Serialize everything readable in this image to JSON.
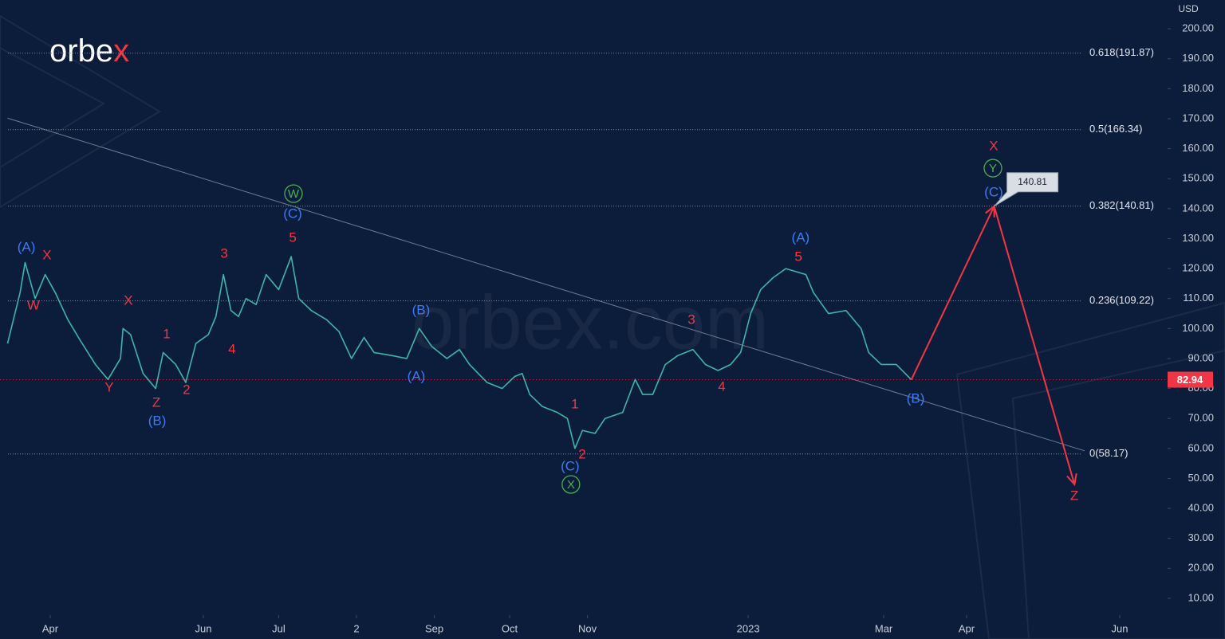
{
  "chart_data": {
    "type": "line",
    "logo": [
      "orbe",
      "x"
    ],
    "watermark": "orbex.com",
    "y_unit": "USD",
    "xlim": [
      0,
      465
    ],
    "xticks": [
      {
        "value": 20,
        "label": "Apr"
      },
      {
        "value": 81,
        "label": "Jun"
      },
      {
        "value": 111,
        "label": "Jul"
      },
      {
        "value": 142,
        "label": "2"
      },
      {
        "value": 173,
        "label": "Sep"
      },
      {
        "value": 203,
        "label": "Oct"
      },
      {
        "value": 234,
        "label": "Nov"
      },
      {
        "value": 298,
        "label": "2023"
      },
      {
        "value": 352,
        "label": "Mar"
      },
      {
        "value": 385,
        "label": "Apr"
      },
      {
        "value": 446,
        "label": "Jun"
      }
    ],
    "ylim": [
      4.4,
      209.6
    ],
    "yticks": [
      {
        "value": 10,
        "label": "10.00"
      },
      {
        "value": 20,
        "label": "20.00"
      },
      {
        "value": 30,
        "label": "30.00"
      },
      {
        "value": 40,
        "label": "40.00"
      },
      {
        "value": 50,
        "label": "50.00"
      },
      {
        "value": 60,
        "label": "60.00"
      },
      {
        "value": 70,
        "label": "70.00"
      },
      {
        "value": 80,
        "label": "80.00"
      },
      {
        "value": 90,
        "label": "90.00"
      },
      {
        "value": 100,
        "label": "100.00"
      },
      {
        "value": 110,
        "label": "110.00"
      },
      {
        "value": 120,
        "label": "120.00"
      },
      {
        "value": 130,
        "label": "130.00"
      },
      {
        "value": 140,
        "label": "140.00"
      },
      {
        "value": 150,
        "label": "150.00"
      },
      {
        "value": 160,
        "label": "160.00"
      },
      {
        "value": 170,
        "label": "170.00"
      },
      {
        "value": 180,
        "label": "180.00"
      },
      {
        "value": 190,
        "label": "190.00"
      },
      {
        "value": 200,
        "label": "200.00"
      }
    ],
    "price": {
      "color": "#3fb5a8",
      "x": [
        3,
        8,
        10,
        14,
        18,
        22,
        27,
        32,
        38,
        43,
        48,
        49,
        52,
        57,
        62,
        65,
        70,
        74,
        78,
        83,
        86,
        89,
        92,
        95,
        98,
        102,
        106,
        111,
        116,
        119,
        124,
        130,
        135,
        140,
        145,
        149,
        156,
        162,
        167,
        172,
        178,
        183,
        187,
        194,
        200,
        205,
        208,
        211,
        216,
        222,
        226,
        229,
        232,
        237,
        241,
        248,
        253,
        256,
        260,
        265,
        270,
        276,
        281,
        286,
        291,
        295,
        299,
        303,
        308,
        313,
        321,
        324,
        330,
        337,
        343,
        346,
        351,
        357,
        363
      ],
      "values": [
        95,
        112,
        122,
        110,
        118,
        112,
        103,
        96,
        88,
        83,
        90,
        100,
        98,
        85,
        80,
        92,
        88,
        82,
        95,
        98,
        104,
        118,
        106,
        104,
        110,
        108,
        118,
        113,
        124,
        110,
        106,
        103,
        99,
        90,
        97,
        92,
        91,
        90,
        100,
        94,
        90,
        93,
        88,
        82,
        80,
        84,
        85,
        78,
        74,
        72,
        70,
        60,
        66,
        65,
        70,
        72,
        83,
        78,
        78,
        88,
        91,
        93,
        88,
        86,
        88,
        92,
        105,
        113,
        117,
        120,
        118,
        112,
        105,
        106,
        100,
        92,
        88,
        88,
        82.94
      ]
    },
    "last_price_color": "#f23645",
    "projection": {
      "color": "#f23645",
      "x": [
        363,
        396,
        428
      ],
      "values": [
        82.94,
        140.81,
        48
      ]
    },
    "callout": {
      "x": 396,
      "value": 140.81
    },
    "trendline": {
      "x": [
        3,
        432
      ],
      "values": [
        170.2,
        59.2
      ]
    },
    "fib_levels": [
      {
        "value": 191.87,
        "label": "0.618(191.87)"
      },
      {
        "value": 166.34,
        "label": "0.5(166.34)"
      },
      {
        "value": 140.81,
        "label": "0.382(140.81)"
      },
      {
        "value": 109.22,
        "label": "0.236(109.22)"
      },
      {
        "value": 58.17,
        "label": "0(58.17)"
      }
    ],
    "annotations": [
      {
        "x": 10.5,
        "y": 127.2,
        "text": "(A)",
        "color": "#3d7bf5"
      },
      {
        "x": 18.7,
        "y": 124.5,
        "text": "X",
        "color": "#f23645"
      },
      {
        "x": 13.3,
        "y": 107.8,
        "text": "W",
        "color": "#f23645"
      },
      {
        "x": 43.5,
        "y": 80.4,
        "text": "Y",
        "color": "#f23645"
      },
      {
        "x": 51.1,
        "y": 109.4,
        "text": "X",
        "color": "#f23645"
      },
      {
        "x": 62.3,
        "y": 75.4,
        "text": "Z",
        "color": "#f23645"
      },
      {
        "x": 62.6,
        "y": 69.3,
        "text": "(B)",
        "color": "#3d7bf5"
      },
      {
        "x": 66.4,
        "y": 98.2,
        "text": "1",
        "color": "#f23645"
      },
      {
        "x": 74.3,
        "y": 79.6,
        "text": "2",
        "color": "#f23645"
      },
      {
        "x": 92.4,
        "y": 93.2,
        "text": "4",
        "color": "#f23645"
      },
      {
        "x": 89.3,
        "y": 125.1,
        "text": "3",
        "color": "#f23645"
      },
      {
        "x": 116.6,
        "y": 138.4,
        "text": "(C)",
        "color": "#3d7bf5"
      },
      {
        "x": 116.9,
        "y": 145.0,
        "text": "W",
        "color": "#4caf50",
        "circled": true
      },
      {
        "x": 116.6,
        "y": 130.4,
        "text": "5",
        "color": "#f23645"
      },
      {
        "x": 167.7,
        "y": 106.2,
        "text": "(B)",
        "color": "#3d7bf5"
      },
      {
        "x": 165.8,
        "y": 84.1,
        "text": "(A)",
        "color": "#3d7bf5"
      },
      {
        "x": 229.0,
        "y": 74.8,
        "text": "1",
        "color": "#f23645"
      },
      {
        "x": 231.9,
        "y": 58.1,
        "text": "2",
        "color": "#f23645"
      },
      {
        "x": 227.1,
        "y": 54.1,
        "text": "(C)",
        "color": "#3d7bf5"
      },
      {
        "x": 227.4,
        "y": 48.0,
        "text": "X",
        "color": "#4caf50",
        "circled": true
      },
      {
        "x": 275.4,
        "y": 103.0,
        "text": "3",
        "color": "#f23645"
      },
      {
        "x": 287.5,
        "y": 80.7,
        "text": "4",
        "color": "#f23645"
      },
      {
        "x": 318.9,
        "y": 130.4,
        "text": "(A)",
        "color": "#3d7bf5"
      },
      {
        "x": 318.0,
        "y": 124.0,
        "text": "5",
        "color": "#f23645"
      },
      {
        "x": 364.7,
        "y": 76.7,
        "text": "(B)",
        "color": "#3d7bf5"
      },
      {
        "x": 395.8,
        "y": 160.9,
        "text": "X",
        "color": "#f23645"
      },
      {
        "x": 395.5,
        "y": 153.5,
        "text": "Y",
        "color": "#4caf50",
        "circled": true
      },
      {
        "x": 395.8,
        "y": 145.5,
        "text": "(C)",
        "color": "#3d7bf5"
      },
      {
        "x": 427.9,
        "y": 44.3,
        "text": "Z",
        "color": "#f23645"
      }
    ]
  }
}
